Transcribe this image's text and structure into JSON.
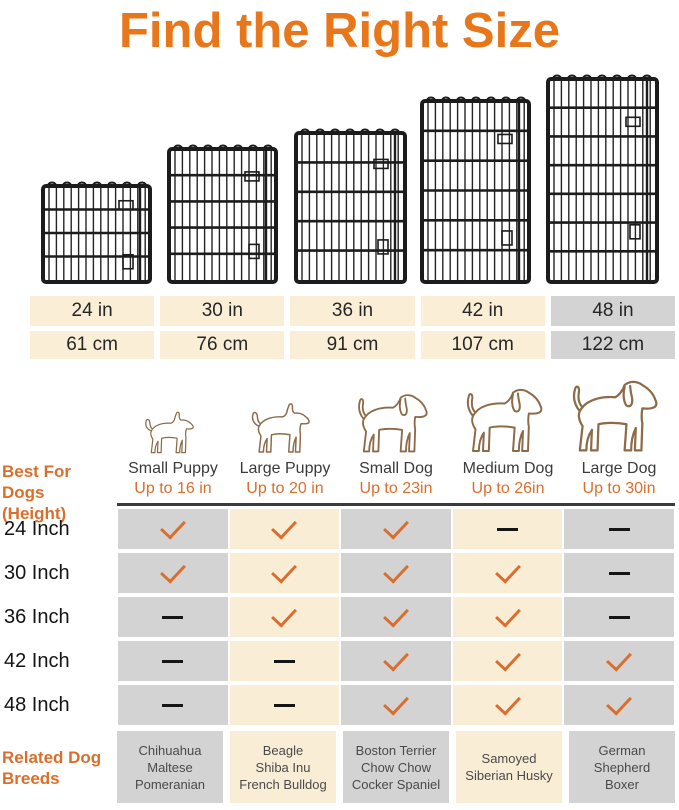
{
  "title": "Find the Right Size",
  "colors": {
    "title_orange": "#E8761A",
    "accent_orange": "#DB6E2B",
    "check_orange": "#D96E2E",
    "cell_cream": "#FAEDD5",
    "cell_gray": "#D3D3D3",
    "dash_black": "#151515",
    "dog_outline_brown": "#8d6b49"
  },
  "panels": {
    "icons": [
      "wire-panel-24in",
      "wire-panel-30in",
      "wire-panel-36in",
      "wire-panel-42in",
      "wire-panel-48in"
    ]
  },
  "size_table": {
    "inches": [
      "24 in",
      "30 in",
      "36 in",
      "42 in",
      "48 in"
    ],
    "cm": [
      "61 cm",
      "76 cm",
      "91 cm",
      "107 cm",
      "122 cm"
    ],
    "highlighted_column": "48 in"
  },
  "best_for": {
    "label_line1": "Best For Dogs",
    "label_line2": "(Height)",
    "columns": [
      {
        "dog": "Small Puppy",
        "height": "Up to 16 in",
        "icon": "small-puppy-outline"
      },
      {
        "dog": "Large Puppy",
        "height": "Up to 20 in",
        "icon": "large-puppy-outline"
      },
      {
        "dog": "Small Dog",
        "height": "Up to 23in",
        "icon": "small-dog-outline"
      },
      {
        "dog": "Medium Dog",
        "height": "Up to 26in",
        "icon": "medium-dog-outline"
      },
      {
        "dog": "Large Dog",
        "height": "Up to 30in",
        "icon": "large-dog-outline"
      }
    ]
  },
  "matrix": {
    "rows": [
      {
        "label": "24 Inch",
        "cells": [
          "check",
          "check",
          "check",
          "dash",
          "dash"
        ]
      },
      {
        "label": "30 Inch",
        "cells": [
          "check",
          "check",
          "check",
          "check",
          "dash"
        ]
      },
      {
        "label": "36 Inch",
        "cells": [
          "dash",
          "check",
          "check",
          "check",
          "dash"
        ]
      },
      {
        "label": "42 Inch",
        "cells": [
          "dash",
          "dash",
          "check",
          "check",
          "check"
        ]
      },
      {
        "label": "48 Inch",
        "cells": [
          "dash",
          "dash",
          "check",
          "check",
          "check"
        ]
      }
    ]
  },
  "breeds": {
    "label_line1": "Related Dog",
    "label_line2": "Breeds",
    "columns": [
      [
        "Chihuahua",
        "Maltese",
        "Pomeranian"
      ],
      [
        "Beagle",
        "Shiba Inu",
        "French Bulldog"
      ],
      [
        "Boston Terrier",
        "Chow Chow",
        "Cocker Spaniel"
      ],
      [
        "Samoyed",
        "Siberian Husky"
      ],
      [
        "German",
        "Shepherd",
        "Boxer"
      ]
    ]
  }
}
